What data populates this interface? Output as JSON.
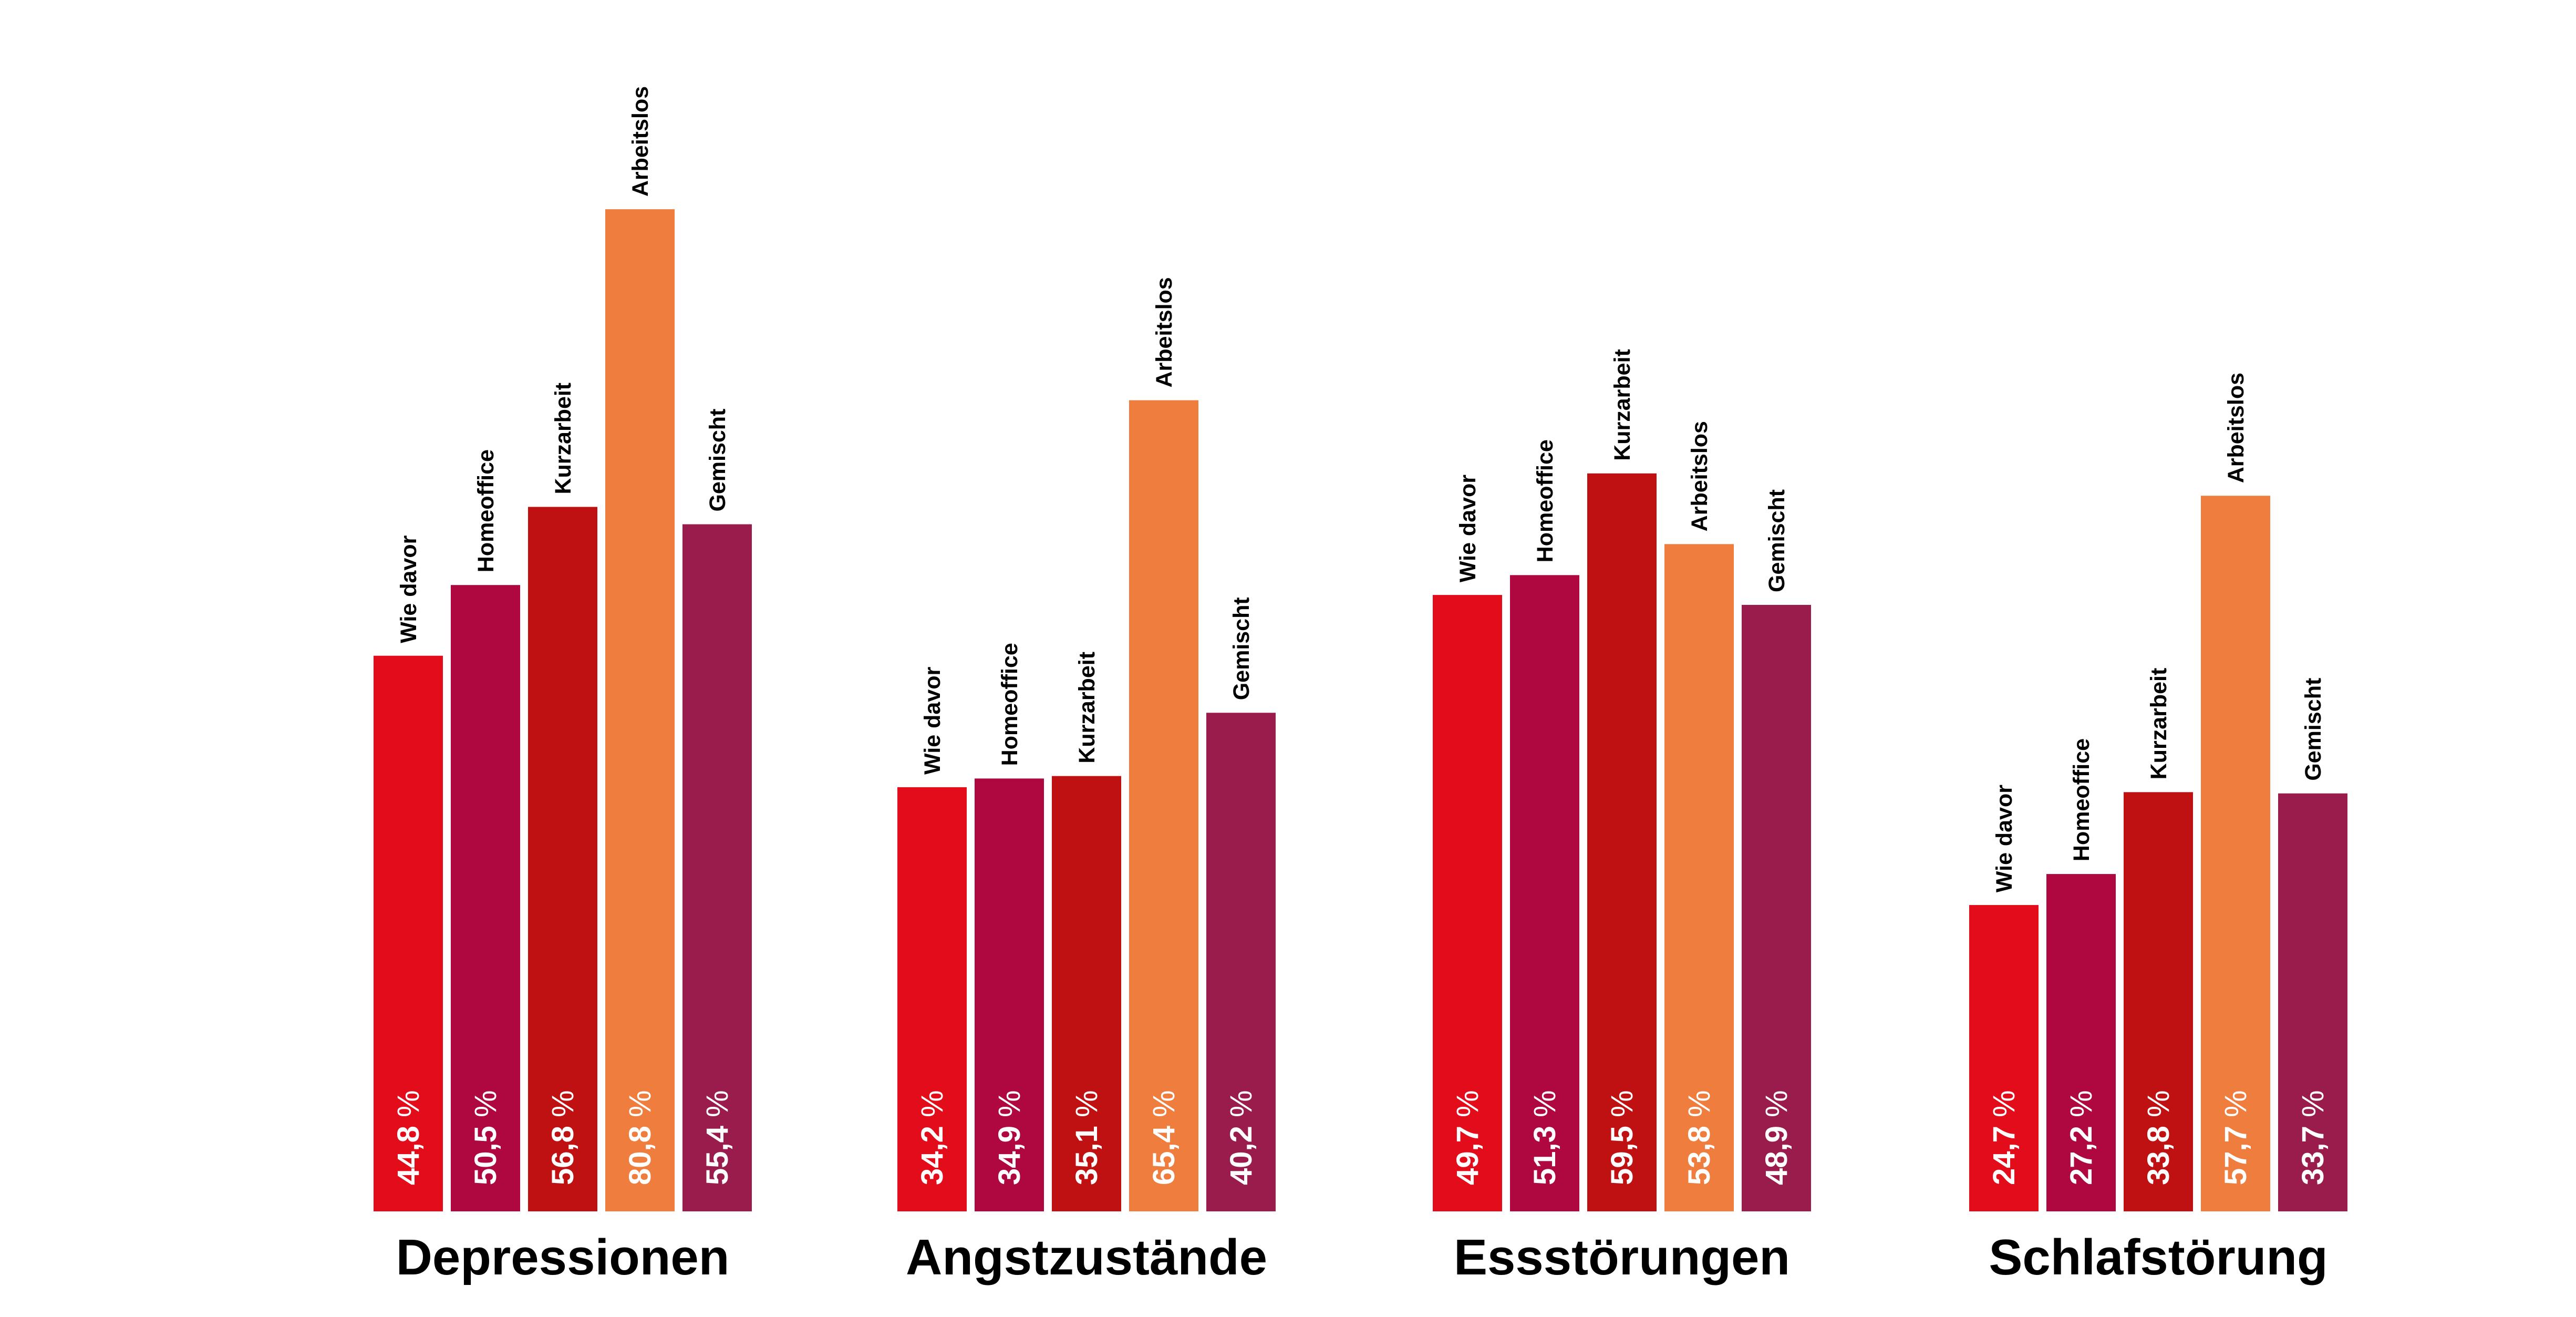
{
  "chart_data": {
    "type": "bar",
    "unit": "%",
    "categories": [
      "Wie davor",
      "Homeoffice",
      "Kurzarbeit",
      "Arbeitslos",
      "Gemischt"
    ],
    "colors": [
      "#E30C1A",
      "#AF0840",
      "#BF1012",
      "#EE7D3E",
      "#9A1C4D"
    ],
    "groups": [
      {
        "title": "Depressionen",
        "values": [
          44.8,
          50.5,
          56.8,
          80.8,
          55.4
        ],
        "labels": [
          "44,8",
          "50,5",
          "56,8",
          "80,8",
          "55,4"
        ]
      },
      {
        "title": "Angstzustände",
        "values": [
          34.2,
          34.9,
          35.1,
          65.4,
          40.2
        ],
        "labels": [
          "34,2",
          "34,9",
          "35,1",
          "65,4",
          "40,2"
        ]
      },
      {
        "title": "Essstörungen",
        "values": [
          49.7,
          51.3,
          59.5,
          53.8,
          48.9
        ],
        "labels": [
          "49,7",
          "51,3",
          "59,5",
          "53,8",
          "48,9"
        ]
      },
      {
        "title": "Schlafstörung",
        "values": [
          24.7,
          27.2,
          33.8,
          57.7,
          33.7
        ],
        "labels": [
          "24,7",
          "27,2",
          "33,8",
          "57,7",
          "33,7"
        ]
      }
    ]
  }
}
